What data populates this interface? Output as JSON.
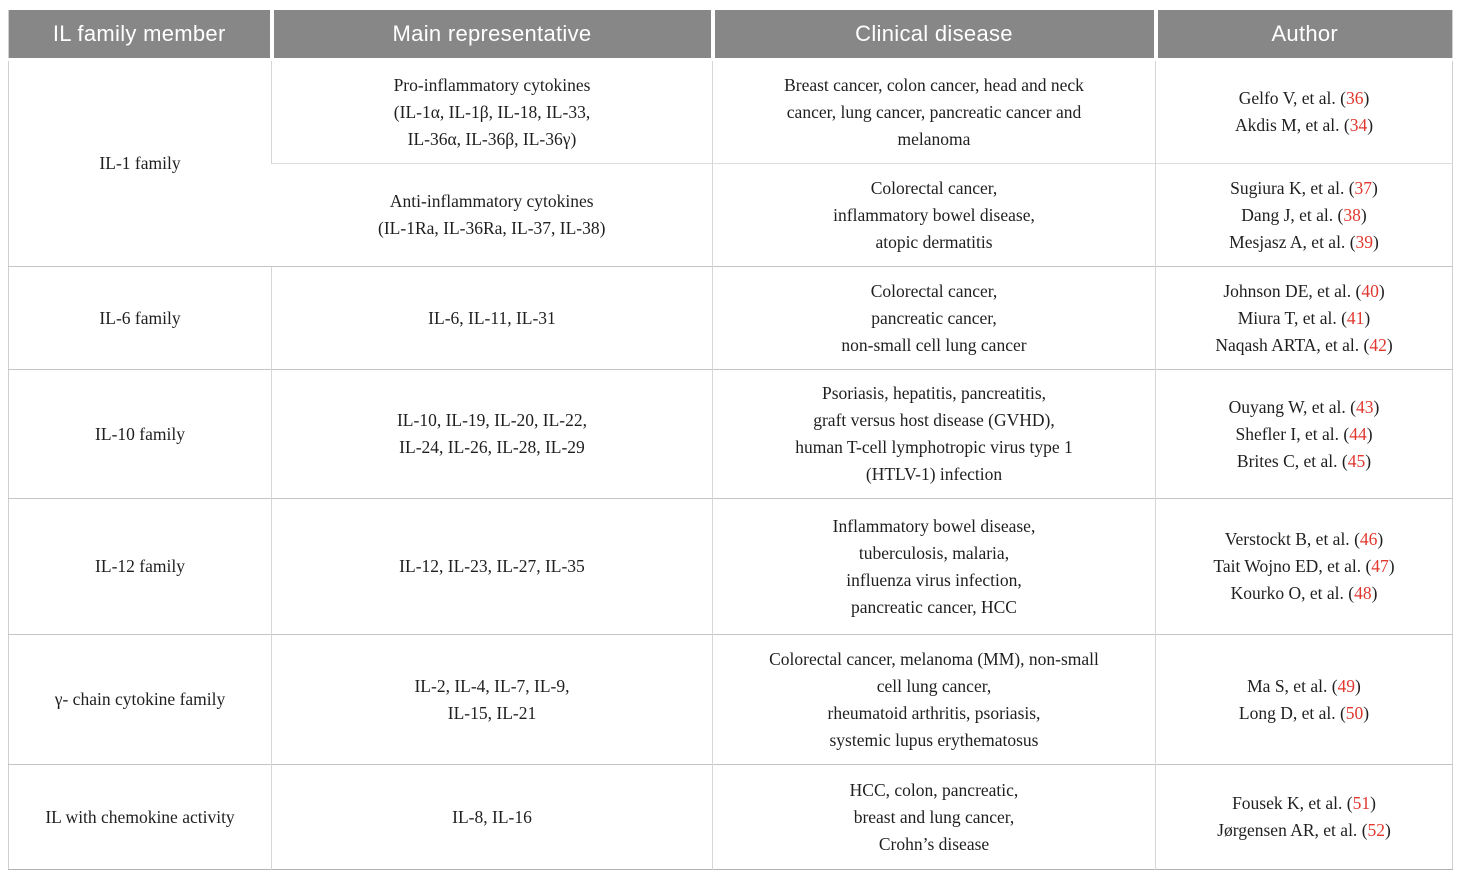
{
  "colors": {
    "header_bg": "#878787",
    "header_text": "#ffffff",
    "citation_red": "#e0372e",
    "body_text": "#1f1f1f"
  },
  "punctuation": {
    "ref_open": " (",
    "ref_close": ")"
  },
  "header": {
    "columns": [
      "IL family member",
      "Main representative",
      "Clinical disease",
      "Author"
    ]
  },
  "rows": [
    {
      "member": "IL-1 family",
      "subrows": [
        {
          "representative": [
            "Pro-inflammatory cytokines",
            "(IL-1α, IL-1β, IL-18, IL-33,",
            "IL-36α, IL-36β, IL-36γ)"
          ],
          "disease": [
            "Breast cancer, colon cancer, head and neck",
            "cancer, lung cancer, pancreatic cancer and",
            "melanoma"
          ],
          "authors": [
            {
              "text": "Gelfo V, et al.",
              "ref": "36"
            },
            {
              "text": "Akdis M, et al.",
              "ref": "34"
            }
          ]
        },
        {
          "representative": [
            "Anti-inflammatory cytokines",
            "(IL-1Ra, IL-36Ra, IL-37, IL-38)"
          ],
          "disease": [
            "Colorectal cancer,",
            "inflammatory bowel disease,",
            "atopic dermatitis"
          ],
          "authors": [
            {
              "text": "Sugiura K, et al.",
              "ref": "37"
            },
            {
              "text": "Dang J, et al.",
              "ref": "38"
            },
            {
              "text": "Mesjasz A, et al.",
              "ref": "39"
            }
          ]
        }
      ]
    },
    {
      "member": "IL-6 family",
      "subrows": [
        {
          "representative": [
            "IL-6, IL-11, IL-31"
          ],
          "disease": [
            "Colorectal cancer,",
            "pancreatic cancer,",
            "non-small cell lung cancer"
          ],
          "authors": [
            {
              "text": "Johnson DE, et al.",
              "ref": "40"
            },
            {
              "text": "Miura T, et al.",
              "ref": "41"
            },
            {
              "text": "Naqash ARTA, et al.",
              "ref": "42"
            }
          ]
        }
      ]
    },
    {
      "member": "IL-10 family",
      "subrows": [
        {
          "representative": [
            "IL-10, IL-19, IL-20, IL-22,",
            "IL-24, IL-26, IL-28, IL-29"
          ],
          "disease": [
            "Psoriasis, hepatitis, pancreatitis,",
            "graft versus host disease (GVHD),",
            "human T-cell lymphotropic virus type 1",
            "(HTLV-1) infection"
          ],
          "authors": [
            {
              "text": "Ouyang W, et al.",
              "ref": "43"
            },
            {
              "text": "Shefler I, et al.",
              "ref": "44"
            },
            {
              "text": "Brites C, et al.",
              "ref": "45"
            }
          ]
        }
      ]
    },
    {
      "member": "IL-12 family",
      "subrows": [
        {
          "representative": [
            "IL-12, IL-23, IL-27, IL-35"
          ],
          "disease": [
            "Inflammatory bowel disease,",
            "tuberculosis, malaria,",
            "influenza virus infection,",
            "pancreatic cancer, HCC"
          ],
          "authors": [
            {
              "text": "Verstockt B, et al.",
              "ref": "46"
            },
            {
              "text": "Tait Wojno ED, et al.",
              "ref": "47"
            },
            {
              "text": "Kourko O, et al.",
              "ref": "48"
            }
          ]
        }
      ]
    },
    {
      "member": "γ- chain cytokine family",
      "subrows": [
        {
          "representative": [
            "IL-2, IL-4, IL-7, IL-9,",
            "IL-15, IL-21"
          ],
          "disease": [
            "Colorectal cancer, melanoma (MM), non-small",
            "cell lung cancer,",
            "rheumatoid arthritis, psoriasis,",
            "systemic lupus erythematosus"
          ],
          "authors": [
            {
              "text": "Ma S, et al.",
              "ref": "49"
            },
            {
              "text": "Long D, et al.",
              "ref": "50"
            }
          ]
        }
      ]
    },
    {
      "member": "IL with chemokine activity",
      "subrows": [
        {
          "representative": [
            "IL-8, IL-16"
          ],
          "disease": [
            "HCC, colon, pancreatic,",
            "breast and lung cancer,",
            "Crohn’s disease"
          ],
          "authors": [
            {
              "text": "Fousek K, et al.",
              "ref": "51"
            },
            {
              "text": "Jørgensen AR, et al.",
              "ref": "52"
            }
          ]
        }
      ]
    }
  ]
}
